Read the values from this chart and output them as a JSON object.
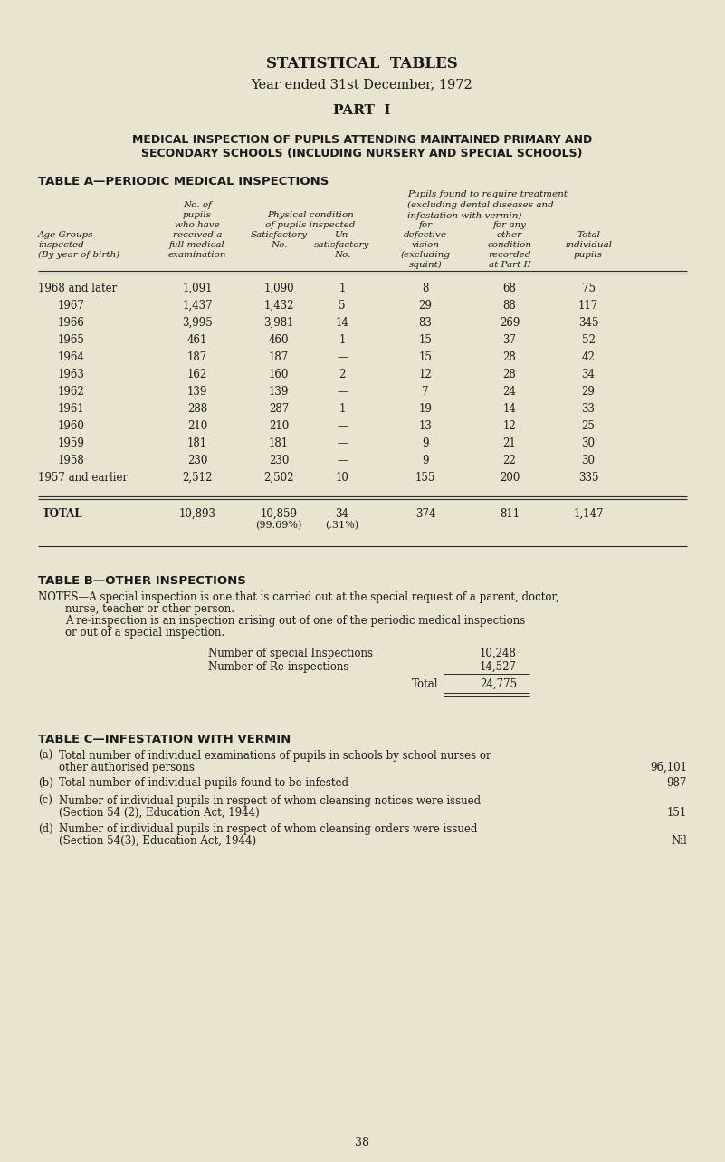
{
  "bg_color": "#e8e4d0",
  "text_color": "#1a1a1a",
  "title1": "STATISTICAL  TABLES",
  "title2": "Year ended 31st December, 1972",
  "title3": "PART  I",
  "title4": "MEDICAL INSPECTION OF PUPILS ATTENDING MAINTAINED PRIMARY AND",
  "title5": "SECONDARY SCHOOLS (INCLUDING NURSERY AND SPECIAL SCHOOLS)",
  "tableA_title": "TABLE A—PERIODIC MEDICAL INSPECTIONS",
  "rows": [
    [
      "1968 and later",
      "1,091",
      "1,090",
      "1",
      "8",
      "68",
      "75"
    ],
    [
      "1967",
      "1,437",
      "1,432",
      "5",
      "29",
      "88",
      "117"
    ],
    [
      "1966",
      "3,995",
      "3,981",
      "14",
      "83",
      "269",
      "345"
    ],
    [
      "1965",
      "461",
      "460",
      "1",
      "15",
      "37",
      "52"
    ],
    [
      "1964",
      "187",
      "187",
      "—",
      "15",
      "28",
      "42"
    ],
    [
      "1963",
      "162",
      "160",
      "2",
      "12",
      "28",
      "34"
    ],
    [
      "1962",
      "139",
      "139",
      "—",
      "7",
      "24",
      "29"
    ],
    [
      "1961",
      "288",
      "287",
      "1",
      "19",
      "14",
      "33"
    ],
    [
      "1960",
      "210",
      "210",
      "—",
      "13",
      "12",
      "25"
    ],
    [
      "1959",
      "181",
      "181",
      "—",
      "9",
      "21",
      "30"
    ],
    [
      "1958",
      "230",
      "230",
      "—",
      "9",
      "22",
      "30"
    ],
    [
      "1957 and earlier",
      "2,512",
      "2,502",
      "10",
      "155",
      "200",
      "335"
    ]
  ],
  "tableB_title": "TABLE B—OTHER INSPECTIONS",
  "tableC_title": "TABLE C—INFESTATION WITH VERMIN",
  "page_number": "38"
}
